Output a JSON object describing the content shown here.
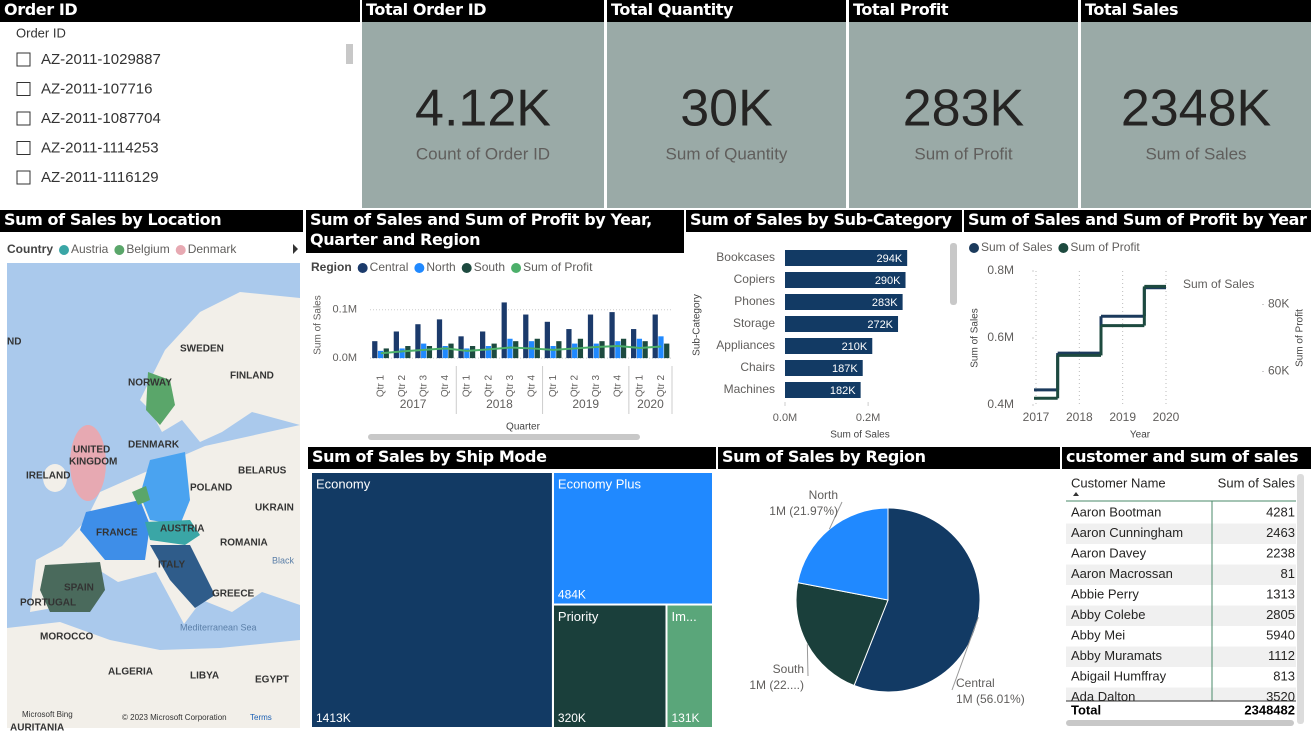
{
  "slicer": {
    "title": "Order ID",
    "header": "Order ID",
    "items": [
      "AZ-2011-1029887",
      "AZ-2011-107716",
      "AZ-2011-1087704",
      "AZ-2011-1114253",
      "AZ-2011-1116129"
    ]
  },
  "cards": [
    {
      "title": "Total Order ID",
      "value": "4.12K",
      "label": "Count of Order ID"
    },
    {
      "title": "Total Quantity",
      "value": "30K",
      "label": "Sum of Quantity"
    },
    {
      "title": "Total Profit",
      "value": "283K",
      "label": "Sum of Profit"
    },
    {
      "title": "Total Sales",
      "value": "2348K",
      "label": "Sum of Sales"
    }
  ],
  "map": {
    "title": "Sum of Sales by Location",
    "legend_title": "Country",
    "legend": [
      {
        "name": "Austria",
        "color": "#3aa6a6"
      },
      {
        "name": "Belgium",
        "color": "#5aa66a"
      },
      {
        "name": "Denmark",
        "color": "#e7a9b2"
      }
    ],
    "labels": [
      "ND",
      "SWEDEN",
      "FINLAND",
      "NORWAY",
      "DENMARK",
      "UNITED",
      "KINGDOM",
      "IRELAND",
      "BELARUS",
      "POLAND",
      "UKRAIN",
      "FRANCE",
      "AUSTRIA",
      "ROMANIA",
      "ITALY",
      "Black",
      "SPAIN",
      "PORTUGAL",
      "GREECE",
      "Mediterranean Sea",
      "MOROCCO",
      "ALGERIA",
      "LIBYA",
      "EGYPT",
      "AURITANIA"
    ],
    "attribution": [
      "Microsoft Bing",
      "© 2023 Microsoft Corporation",
      "Terms"
    ]
  },
  "chart_data": [
    {
      "type": "combo",
      "title": "Sum of Sales and Sum of Profit by Year, Quarter and Region",
      "legend_title": "Region",
      "y_label": "Sum of Sales",
      "x_label": "Quarter",
      "years": [
        "2017",
        "2018",
        "2019",
        "2020"
      ],
      "quarters": [
        [
          "Qtr 1",
          "Qtr 2",
          "Qtr 3",
          "Qtr 4"
        ],
        [
          "Qtr 1",
          "Qtr 2",
          "Qtr 3",
          "Qtr 4"
        ],
        [
          "Qtr 1",
          "Qtr 2",
          "Qtr 3",
          "Qtr 4"
        ],
        [
          "Qtr 1",
          "Qtr 2"
        ]
      ],
      "series": [
        {
          "name": "Central",
          "color": "#1b3a6b",
          "values": [
            35000,
            55000,
            70000,
            80000,
            45000,
            55000,
            115000,
            90000,
            75000,
            60000,
            90000,
            95000,
            60000,
            90000
          ]
        },
        {
          "name": "North",
          "color": "#2089ff",
          "values": [
            15000,
            20000,
            30000,
            25000,
            20000,
            25000,
            40000,
            35000,
            25000,
            30000,
            30000,
            35000,
            40000,
            45000
          ]
        },
        {
          "name": "South",
          "color": "#1d4a3f",
          "values": [
            20000,
            25000,
            25000,
            30000,
            25000,
            30000,
            35000,
            40000,
            35000,
            40000,
            35000,
            40000,
            35000,
            30000
          ]
        },
        {
          "name": "Sum of Profit",
          "type": "line",
          "color": "#4caf6a",
          "values": [
            10000,
            14000,
            17000,
            20000,
            15000,
            18000,
            22000,
            20000,
            17000,
            20000,
            23000,
            25000,
            21000,
            24000
          ]
        }
      ],
      "ylim": [
        -8000,
        120000
      ],
      "yticks": [
        {
          "value": 0,
          "label": "0.0M"
        },
        {
          "value": 100000,
          "label": "0.1M"
        }
      ],
      "grid": true
    },
    {
      "type": "bar",
      "orientation": "horizontal",
      "title": "Sum of Sales by Sub-Category",
      "y_label": "Sub-Category",
      "x_label": "Sum of Sales",
      "categories": [
        "Bookcases",
        "Copiers",
        "Phones",
        "Storage",
        "Appliances",
        "Chairs",
        "Machines"
      ],
      "values": [
        294000,
        290000,
        283000,
        272000,
        210000,
        187000,
        182000
      ],
      "value_labels": [
        "294K",
        "290K",
        "283K",
        "272K",
        "210K",
        "187K",
        "182K"
      ],
      "color": "#123a64",
      "xlim": [
        0,
        385000
      ],
      "xticks": [
        {
          "value": 0,
          "label": "0.0M"
        },
        {
          "value": 200000,
          "label": "0.2M"
        }
      ]
    },
    {
      "type": "line",
      "title": "Sum of Sales and Sum of Profit by Year",
      "step": true,
      "x": [
        2017,
        2018,
        2019,
        2020
      ],
      "xlim": [
        2017,
        2020
      ],
      "xticks": [
        2017,
        2018,
        2019,
        2020
      ],
      "x_label": "Year",
      "y_label": "Sum of Sales",
      "y2_label": "Sum of Profit",
      "annotation": "Sum of Sales",
      "series": [
        {
          "name": "Sum of Sales",
          "color": "#1b3a5c",
          "values": [
            445000,
            555000,
            665000,
            750000
          ]
        },
        {
          "name": "Sum of Profit",
          "color": "#1d4a3f",
          "axis": "y2",
          "values": [
            52000,
            64800,
            73700,
            85400
          ]
        }
      ],
      "ylim": [
        400000,
        800000
      ],
      "yticks": [
        {
          "value": 400000,
          "label": "0.4M"
        },
        {
          "value": 600000,
          "label": "0.6M"
        },
        {
          "value": 800000,
          "label": "0.8M"
        }
      ],
      "y2lim": [
        50000,
        90000
      ],
      "y2ticks": [
        {
          "value": 60000,
          "label": "60K"
        },
        {
          "value": 80000,
          "label": "80K"
        }
      ]
    },
    {
      "type": "treemap",
      "title": "Sum of Sales by Ship Mode",
      "categories": [
        "Economy",
        "Economy Plus",
        "Priority",
        "Im..."
      ],
      "values": [
        1413000,
        484000,
        320000,
        131000
      ],
      "value_labels": [
        "1413K",
        "484K",
        "320K",
        "131K"
      ],
      "colors": [
        "#123a64",
        "#2089ff",
        "#1a3f3b",
        "#5aa67a"
      ]
    },
    {
      "type": "pie",
      "title": "Sum of Sales by Region",
      "categories": [
        "Central",
        "South",
        "North"
      ],
      "values": [
        1315380,
        517130,
        515970
      ],
      "value_labels": [
        "1M (56.01%)",
        "1M (22....)",
        "1M (21.97%)"
      ],
      "colors": [
        "#123a64",
        "#1a3f3b",
        "#2089ff"
      ]
    }
  ],
  "table": {
    "title": "customer and sum of sales",
    "columns": [
      "Customer Name",
      "Sum of Sales"
    ],
    "rows": [
      [
        "Aaron Bootman",
        4281
      ],
      [
        "Aaron Cunningham",
        2463
      ],
      [
        "Aaron Davey",
        2238
      ],
      [
        "Aaron Macrossan",
        81
      ],
      [
        "Abbie Perry",
        1313
      ],
      [
        "Abby Colebe",
        2805
      ],
      [
        "Abby Mei",
        5940
      ],
      [
        "Abby Muramats",
        1112
      ],
      [
        "Abigail Humffray",
        813
      ],
      [
        "Ada Dalton",
        3520
      ]
    ],
    "total": [
      "Total",
      2348482
    ]
  }
}
